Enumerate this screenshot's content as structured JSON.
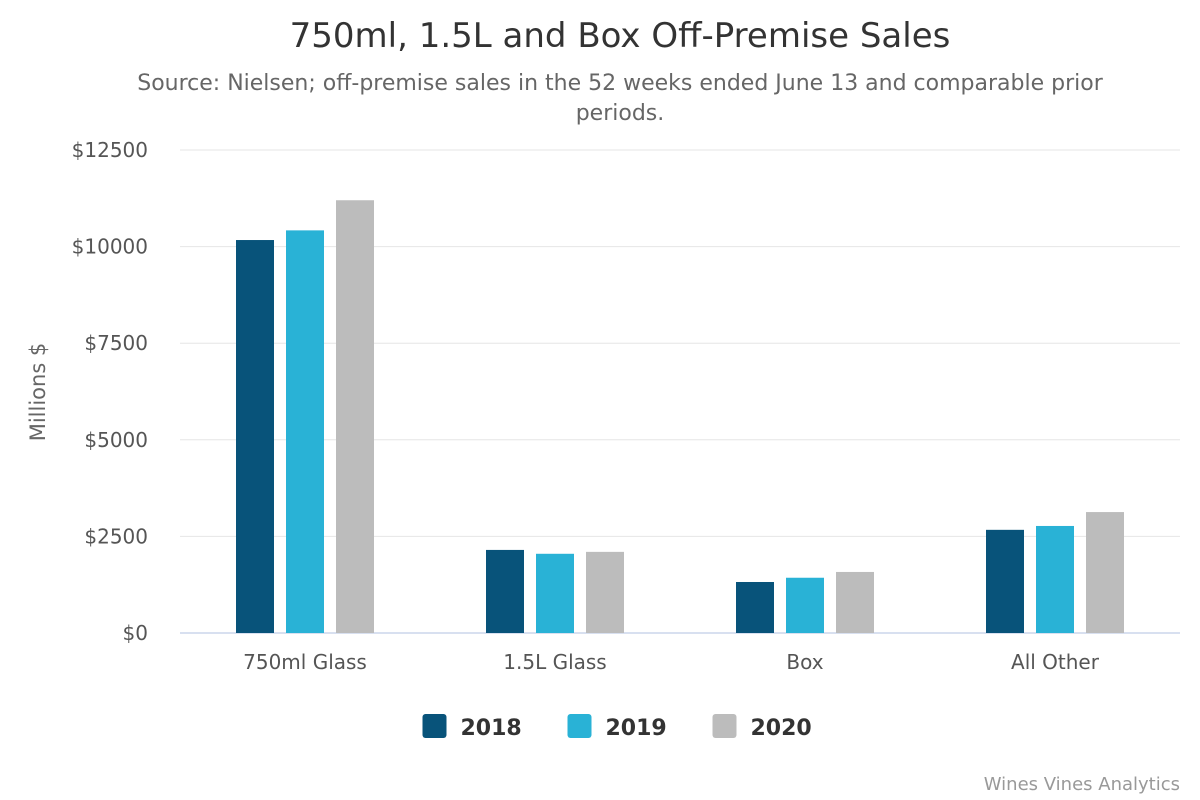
{
  "chart_data": {
    "type": "bar",
    "title": "750ml, 1.5L and Box Off-Premise Sales",
    "subtitle_lines": [
      "Source: Nielsen; off-premise sales in the 52 weeks ended June 13 and comparable prior",
      "periods."
    ],
    "xlabel": "",
    "ylabel": "Millions $",
    "categories": [
      "750ml Glass",
      "1.5L Glass",
      "Box",
      "All Other"
    ],
    "series": [
      {
        "name": "2018",
        "color": "#08537a",
        "values": [
          10170,
          2150,
          1320,
          2670
        ]
      },
      {
        "name": "2019",
        "color": "#29b2d6",
        "values": [
          10420,
          2050,
          1430,
          2770
        ]
      },
      {
        "name": "2020",
        "color": "#bcbcbc",
        "values": [
          11200,
          2100,
          1580,
          3130
        ]
      }
    ],
    "ylim": [
      0,
      12500
    ],
    "yticks": [
      0,
      2500,
      5000,
      7500,
      10000,
      12500
    ],
    "ytick_labels": [
      "$0",
      "$2500",
      "$5000",
      "$7500",
      "$10000",
      "$12500"
    ],
    "grid": true,
    "legend_position": "bottom-center",
    "credit": "Wines Vines Analytics"
  }
}
